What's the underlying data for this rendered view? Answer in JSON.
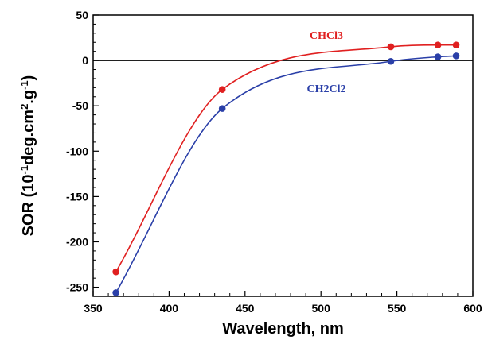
{
  "chart_data": {
    "type": "line",
    "xlabel": "Wavelength, nm",
    "ylabel": {
      "base": "SOR (10",
      "exp1": "-1",
      "mid": "deg.cm",
      "exp2": "2",
      "mid2": ".g",
      "exp3": "-1",
      "end": ")"
    },
    "xlim": [
      350,
      600
    ],
    "ylim": [
      -260,
      50
    ],
    "xticks": [
      350,
      400,
      450,
      500,
      550,
      600
    ],
    "yticks": [
      50,
      0,
      -50,
      -100,
      -150,
      -200,
      -250
    ],
    "reference_line_y": 0,
    "series": [
      {
        "name": "CHCl3",
        "color": "#e02020",
        "x": [
          365,
          435,
          546,
          577,
          589
        ],
        "y": [
          -233,
          -32,
          15,
          17,
          17
        ]
      },
      {
        "name": "CH2Cl2",
        "color": "#2a3fa8",
        "x": [
          365,
          435,
          546,
          577,
          589
        ],
        "y": [
          -256,
          -53,
          -1,
          4,
          5
        ]
      }
    ]
  }
}
